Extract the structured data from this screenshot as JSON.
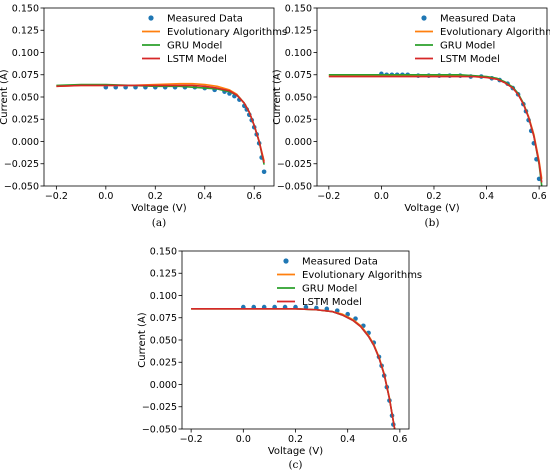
{
  "chart_data": [
    {
      "type": "line",
      "panel_label": "(a)",
      "xlabel": "Voltage (V)",
      "ylabel": "Current (A)",
      "xlim": [
        -0.25,
        0.68
      ],
      "ylim": [
        -0.05,
        0.15
      ],
      "xticks": [
        -0.2,
        0.0,
        0.2,
        0.4,
        0.6
      ],
      "xtick_labels": [
        "−0.2",
        "0.0",
        "0.2",
        "0.4",
        "0.6"
      ],
      "yticks": [
        -0.05,
        -0.025,
        0.0,
        0.025,
        0.05,
        0.075,
        0.1,
        0.125,
        0.15
      ],
      "ytick_labels": [
        "−0.050",
        "−0.025",
        "0.000",
        "0.025",
        "0.050",
        "0.075",
        "0.100",
        "0.125",
        "0.150"
      ],
      "legend": [
        "Measured Data",
        "Evolutionary Algorithms",
        "GRU Model",
        "LSTM Model"
      ],
      "legend_position": "top-right",
      "series": [
        {
          "name": "Measured Data",
          "style": "scatter",
          "color": "#1f77b4",
          "x": [
            0.0,
            0.04,
            0.08,
            0.12,
            0.16,
            0.2,
            0.24,
            0.28,
            0.32,
            0.36,
            0.4,
            0.44,
            0.48,
            0.5,
            0.52,
            0.54,
            0.56,
            0.57,
            0.58,
            0.59,
            0.6,
            0.61,
            0.62,
            0.63,
            0.64
          ],
          "y": [
            0.061,
            0.061,
            0.061,
            0.061,
            0.061,
            0.061,
            0.061,
            0.061,
            0.061,
            0.061,
            0.06,
            0.058,
            0.056,
            0.054,
            0.051,
            0.047,
            0.04,
            0.036,
            0.03,
            0.024,
            0.016,
            0.008,
            -0.002,
            -0.018,
            -0.034
          ]
        },
        {
          "name": "Evolutionary Algorithms",
          "style": "line",
          "color": "#ff7f0e",
          "x": [
            -0.2,
            -0.1,
            0.0,
            0.1,
            0.2,
            0.3,
            0.35,
            0.4,
            0.45,
            0.5,
            0.53,
            0.56,
            0.58,
            0.6,
            0.62,
            0.64
          ],
          "y": [
            0.062,
            0.063,
            0.063,
            0.063,
            0.064,
            0.065,
            0.065,
            0.064,
            0.062,
            0.058,
            0.053,
            0.043,
            0.033,
            0.018,
            0.0,
            -0.022
          ]
        },
        {
          "name": "GRU Model",
          "style": "line",
          "color": "#2ca02c",
          "x": [
            -0.2,
            -0.1,
            0.0,
            0.1,
            0.2,
            0.3,
            0.35,
            0.4,
            0.45,
            0.5,
            0.53,
            0.56,
            0.58,
            0.6,
            0.62,
            0.64
          ],
          "y": [
            0.063,
            0.064,
            0.064,
            0.063,
            0.062,
            0.062,
            0.061,
            0.06,
            0.059,
            0.056,
            0.052,
            0.043,
            0.033,
            0.018,
            0.0,
            -0.026
          ]
        },
        {
          "name": "LSTM Model",
          "style": "line",
          "color": "#d62728",
          "x": [
            -0.2,
            -0.1,
            0.0,
            0.1,
            0.2,
            0.3,
            0.35,
            0.4,
            0.45,
            0.5,
            0.53,
            0.56,
            0.58,
            0.6,
            0.62,
            0.64
          ],
          "y": [
            0.062,
            0.063,
            0.063,
            0.063,
            0.063,
            0.063,
            0.063,
            0.062,
            0.06,
            0.057,
            0.052,
            0.043,
            0.033,
            0.018,
            0.0,
            -0.024
          ]
        }
      ]
    },
    {
      "type": "line",
      "panel_label": "(b)",
      "xlabel": "Voltage (V)",
      "ylabel": "Current (A)",
      "xlim": [
        -0.245,
        0.63
      ],
      "ylim": [
        -0.05,
        0.15
      ],
      "xticks": [
        -0.2,
        0.0,
        0.2,
        0.4,
        0.6
      ],
      "xtick_labels": [
        "−0.2",
        "0.0",
        "0.2",
        "0.4",
        "0.6"
      ],
      "yticks": [
        -0.05,
        -0.025,
        0.0,
        0.025,
        0.05,
        0.075,
        0.1,
        0.125,
        0.15
      ],
      "ytick_labels": [
        "−0.050",
        "−0.025",
        "0.000",
        "0.025",
        "0.050",
        "0.075",
        "0.100",
        "0.125",
        "0.150"
      ],
      "legend": [
        "Measured Data",
        "Evolutionary Algorithms",
        "GRU Model",
        "LSTM Model"
      ],
      "legend_position": "top-right",
      "series": [
        {
          "name": "Measured Data",
          "style": "scatter",
          "color": "#1f77b4",
          "x": [
            0.0,
            0.02,
            0.04,
            0.06,
            0.08,
            0.1,
            0.14,
            0.18,
            0.22,
            0.26,
            0.3,
            0.34,
            0.38,
            0.42,
            0.45,
            0.48,
            0.5,
            0.52,
            0.54,
            0.55,
            0.56,
            0.57,
            0.58,
            0.59,
            0.6
          ],
          "y": [
            0.076,
            0.075,
            0.075,
            0.075,
            0.075,
            0.075,
            0.074,
            0.074,
            0.074,
            0.074,
            0.074,
            0.073,
            0.073,
            0.071,
            0.069,
            0.065,
            0.06,
            0.053,
            0.042,
            0.034,
            0.024,
            0.012,
            -0.002,
            -0.02,
            -0.042
          ]
        },
        {
          "name": "Evolutionary Algorithms",
          "style": "line",
          "color": "#ff7f0e",
          "x": [
            -0.2,
            -0.1,
            0.0,
            0.1,
            0.2,
            0.3,
            0.35,
            0.4,
            0.44,
            0.47,
            0.5,
            0.52,
            0.54,
            0.56,
            0.58,
            0.6,
            0.61
          ],
          "y": [
            0.074,
            0.074,
            0.074,
            0.074,
            0.074,
            0.074,
            0.073,
            0.072,
            0.07,
            0.066,
            0.06,
            0.053,
            0.043,
            0.028,
            0.008,
            -0.022,
            -0.042
          ]
        },
        {
          "name": "GRU Model",
          "style": "line",
          "color": "#2ca02c",
          "x": [
            -0.2,
            -0.1,
            0.0,
            0.1,
            0.2,
            0.3,
            0.35,
            0.4,
            0.44,
            0.47,
            0.5,
            0.52,
            0.54,
            0.56,
            0.58,
            0.6,
            0.61
          ],
          "y": [
            0.075,
            0.075,
            0.075,
            0.075,
            0.075,
            0.075,
            0.074,
            0.073,
            0.071,
            0.067,
            0.061,
            0.054,
            0.043,
            0.027,
            0.006,
            -0.026,
            -0.05
          ]
        },
        {
          "name": "LSTM Model",
          "style": "line",
          "color": "#d62728",
          "x": [
            -0.2,
            -0.1,
            0.0,
            0.1,
            0.2,
            0.3,
            0.35,
            0.4,
            0.44,
            0.47,
            0.5,
            0.52,
            0.54,
            0.56,
            0.58,
            0.6,
            0.61
          ],
          "y": [
            0.073,
            0.073,
            0.073,
            0.073,
            0.073,
            0.073,
            0.073,
            0.072,
            0.07,
            0.066,
            0.06,
            0.053,
            0.042,
            0.027,
            0.006,
            -0.024,
            -0.046
          ]
        }
      ]
    },
    {
      "type": "line",
      "panel_label": "(c)",
      "xlabel": "Voltage (V)",
      "ylabel": "Current (A)",
      "xlim": [
        -0.235,
        0.635
      ],
      "ylim": [
        -0.05,
        0.15
      ],
      "xticks": [
        -0.2,
        0.0,
        0.2,
        0.4,
        0.6
      ],
      "xtick_labels": [
        "−0.2",
        "0.0",
        "0.2",
        "0.4",
        "0.6"
      ],
      "yticks": [
        -0.05,
        -0.025,
        0.0,
        0.025,
        0.05,
        0.075,
        0.1,
        0.125,
        0.15
      ],
      "ytick_labels": [
        "−0.050",
        "−0.025",
        "0.000",
        "0.025",
        "0.050",
        "0.075",
        "0.100",
        "0.125",
        "0.150"
      ],
      "legend": [
        "Measured Data",
        "Evolutionary Algorithms",
        "GRU Model",
        "LSTM Model"
      ],
      "legend_position": "top-right",
      "series": [
        {
          "name": "Measured Data",
          "style": "scatter",
          "color": "#1f77b4",
          "x": [
            0.0,
            0.04,
            0.08,
            0.12,
            0.16,
            0.2,
            0.24,
            0.28,
            0.32,
            0.36,
            0.4,
            0.43,
            0.46,
            0.48,
            0.5,
            0.52,
            0.53,
            0.54,
            0.55,
            0.56,
            0.57,
            0.575
          ],
          "y": [
            0.087,
            0.087,
            0.087,
            0.087,
            0.087,
            0.087,
            0.087,
            0.086,
            0.085,
            0.083,
            0.079,
            0.074,
            0.066,
            0.058,
            0.047,
            0.031,
            0.021,
            0.01,
            -0.003,
            -0.018,
            -0.035,
            -0.045
          ]
        },
        {
          "name": "Evolutionary Algorithms",
          "style": "line",
          "color": "#ff7f0e",
          "x": [
            -0.2,
            -0.1,
            0.0,
            0.1,
            0.2,
            0.28,
            0.34,
            0.38,
            0.42,
            0.45,
            0.48,
            0.5,
            0.52,
            0.54,
            0.56,
            0.58
          ],
          "y": [
            0.085,
            0.085,
            0.085,
            0.085,
            0.085,
            0.084,
            0.082,
            0.079,
            0.073,
            0.066,
            0.055,
            0.045,
            0.031,
            0.012,
            -0.015,
            -0.05
          ]
        },
        {
          "name": "GRU Model",
          "style": "line",
          "color": "#2ca02c",
          "x": [
            -0.2,
            -0.1,
            0.0,
            0.1,
            0.2,
            0.28,
            0.34,
            0.38,
            0.42,
            0.45,
            0.48,
            0.5,
            0.52,
            0.54,
            0.56,
            0.58
          ],
          "y": [
            0.085,
            0.085,
            0.085,
            0.085,
            0.085,
            0.084,
            0.082,
            0.078,
            0.072,
            0.065,
            0.054,
            0.044,
            0.03,
            0.011,
            -0.016,
            -0.05
          ]
        },
        {
          "name": "LSTM Model",
          "style": "line",
          "color": "#d62728",
          "x": [
            -0.2,
            -0.1,
            0.0,
            0.1,
            0.2,
            0.28,
            0.34,
            0.38,
            0.42,
            0.45,
            0.48,
            0.5,
            0.52,
            0.54,
            0.56,
            0.58
          ],
          "y": [
            0.085,
            0.085,
            0.085,
            0.085,
            0.085,
            0.084,
            0.082,
            0.078,
            0.072,
            0.065,
            0.054,
            0.044,
            0.03,
            0.011,
            -0.016,
            -0.05
          ]
        }
      ]
    }
  ]
}
